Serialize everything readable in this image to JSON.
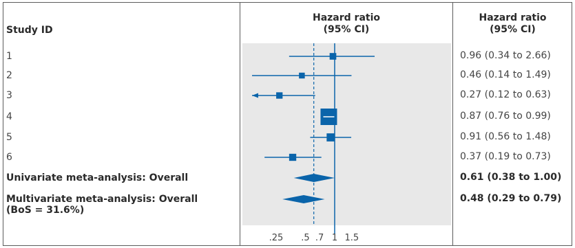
{
  "headers": {
    "study": "Study ID",
    "plot_line1": "Hazard ratio",
    "plot_line2": "(95% CI)",
    "col_line1": "Hazard ratio",
    "col_line2": "(95% CI)"
  },
  "colors": {
    "accent": "#0a64aa",
    "plot_bg": "#e8e8e8",
    "border": "#5a5a5a"
  },
  "chart_data": {
    "type": "forest",
    "title": "",
    "xlabel": "",
    "ylabel": "",
    "x_scale": "log",
    "xlim": [
      0.1,
      2.9
    ],
    "x_ticks": [
      0.25,
      0.5,
      0.7,
      1,
      1.5
    ],
    "x_tick_labels": [
      ".25",
      ".5",
      ".7",
      "1",
      "1.5"
    ],
    "null_line": 1,
    "overall_line": 0.61,
    "studies": [
      {
        "label": "1",
        "hr": 0.96,
        "lo": 0.34,
        "hi": 2.66,
        "text": "0.96 (0.34 to 2.66)",
        "weight": 0.08,
        "arrow_left": false
      },
      {
        "label": "2",
        "hr": 0.46,
        "lo": 0.14,
        "hi": 1.49,
        "text": "0.46 (0.14 to 1.49)",
        "weight": 0.05,
        "arrow_left": false
      },
      {
        "label": "3",
        "hr": 0.27,
        "lo": 0.12,
        "hi": 0.63,
        "text": "0.27 (0.12 to 0.63)",
        "weight": 0.07,
        "arrow_left": true
      },
      {
        "label": "4",
        "hr": 0.87,
        "lo": 0.76,
        "hi": 0.99,
        "text": "0.87 (0.76 to 0.99)",
        "weight": 1.0,
        "arrow_left": false
      },
      {
        "label": "5",
        "hr": 0.91,
        "lo": 0.56,
        "hi": 1.48,
        "text": "0.91 (0.56 to 1.48)",
        "weight": 0.15,
        "arrow_left": false
      },
      {
        "label": "6",
        "hr": 0.37,
        "lo": 0.19,
        "hi": 0.73,
        "text": "0.37 (0.19 to 0.73)",
        "weight": 0.1,
        "arrow_left": false
      }
    ],
    "overall": [
      {
        "label": "Univariate meta-analysis: Overall",
        "hr": 0.61,
        "lo": 0.38,
        "hi": 1.0,
        "text": "0.61 (0.38 to 1.00)"
      },
      {
        "label": "Multivariate meta-analysis: Overall",
        "label2": "(BoS = 31.6%)",
        "hr": 0.48,
        "lo": 0.29,
        "hi": 0.79,
        "text": "0.48 (0.29 to 0.79)"
      }
    ]
  }
}
